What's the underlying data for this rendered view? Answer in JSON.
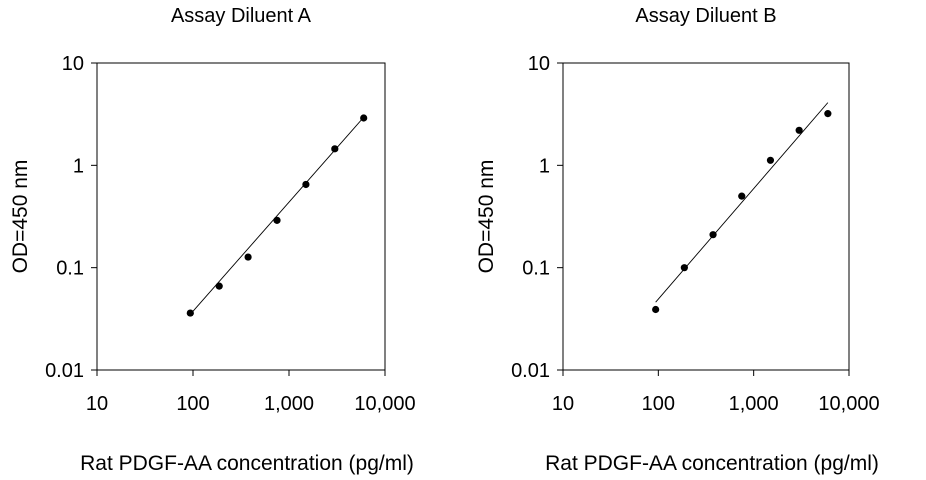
{
  "chart_data": [
    {
      "type": "scatter",
      "title": "Assay Diluent A",
      "xlabel": "Rat PDGF-AA concentration (pg/ml)",
      "ylabel": "OD=450 nm",
      "xscale": "log",
      "yscale": "log",
      "xlim": [
        10,
        10000
      ],
      "ylim": [
        0.01,
        10
      ],
      "xticks": [
        "10",
        "100",
        "1,000",
        "10,000"
      ],
      "yticks": [
        "0.01",
        "0.1",
        "1",
        "10"
      ],
      "grid": false,
      "legend": "none",
      "fit": "log-log linear",
      "series": [
        {
          "x": [
            93.75,
            187.5,
            375,
            750,
            1500,
            3000,
            6000
          ],
          "y": [
            0.036,
            0.066,
            0.127,
            0.29,
            0.65,
            1.45,
            2.9
          ]
        }
      ],
      "fit_line": {
        "x": [
          93.75,
          6000
        ],
        "y": [
          0.035,
          2.95
        ]
      }
    },
    {
      "type": "scatter",
      "title": "Assay Diluent B",
      "xlabel": "Rat PDGF-AA concentration (pg/ml)",
      "ylabel": "OD=450 nm",
      "xscale": "log",
      "yscale": "log",
      "xlim": [
        10,
        10000
      ],
      "ylim": [
        0.01,
        10
      ],
      "xticks": [
        "10",
        "100",
        "1,000",
        "10,000"
      ],
      "yticks": [
        "0.01",
        "0.1",
        "1",
        "10"
      ],
      "grid": false,
      "legend": "none",
      "fit": "log-log linear",
      "series": [
        {
          "x": [
            93.75,
            187.5,
            375,
            750,
            1500,
            3000,
            6000
          ],
          "y": [
            0.039,
            0.1,
            0.21,
            0.5,
            1.12,
            2.2,
            3.2
          ]
        }
      ],
      "fit_line": {
        "x": [
          93.75,
          6000
        ],
        "y": [
          0.046,
          4.1
        ]
      }
    }
  ]
}
